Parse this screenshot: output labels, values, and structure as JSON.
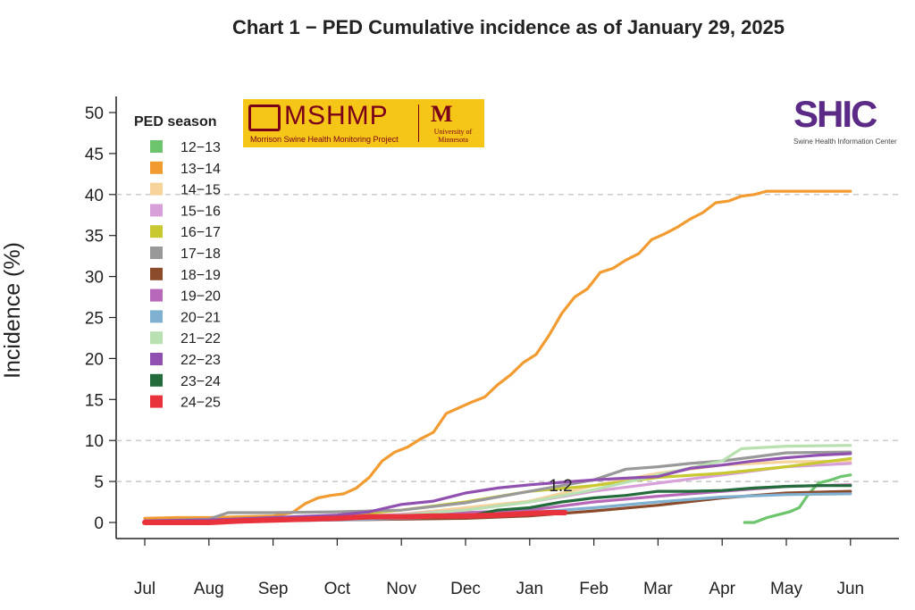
{
  "chart_data": {
    "type": "line",
    "title": "Chart 1 − PED Cumulative incidence as of January 29, 2025",
    "xlabel": "",
    "ylabel": "Incidence (%)",
    "ylim": [
      0,
      52
    ],
    "yticks": [
      0,
      5,
      10,
      15,
      20,
      25,
      30,
      35,
      40,
      45,
      50
    ],
    "gridlines_y": [
      5,
      10,
      40
    ],
    "x_categories": [
      "Jul",
      "Aug",
      "Sep",
      "Oct",
      "Nov",
      "Dec",
      "Jan",
      "Feb",
      "Mar",
      "Apr",
      "May",
      "Jun"
    ],
    "legend_title": "PED season",
    "legend_position": "top-left",
    "annotation": "1.2",
    "series": [
      {
        "name": "12−13",
        "color": "#6cc46c",
        "x": [
          9.35,
          9.5,
          9.7,
          9.9,
          10.05,
          10.2,
          10.35,
          10.5,
          10.7,
          10.85,
          11.0
        ],
        "y": [
          0,
          0,
          0.6,
          1.0,
          1.3,
          1.8,
          3.5,
          4.8,
          5.2,
          5.6,
          5.8
        ]
      },
      {
        "name": "13−14",
        "color": "#f29b30",
        "x": [
          0,
          0.5,
          1,
          1.5,
          2,
          2.3,
          2.5,
          2.7,
          2.9,
          3.1,
          3.3,
          3.5,
          3.7,
          3.9,
          4.1,
          4.3,
          4.5,
          4.7,
          4.9,
          5.1,
          5.3,
          5.5,
          5.7,
          5.9,
          6.1,
          6.3,
          6.5,
          6.7,
          6.9,
          7.1,
          7.3,
          7.5,
          7.7,
          7.9,
          8.1,
          8.3,
          8.5,
          8.7,
          8.9,
          9.1,
          9.3,
          9.5,
          9.7,
          9.9,
          10.1,
          10.3,
          10.5,
          10.7,
          11.0
        ],
        "y": [
          0.5,
          0.6,
          0.6,
          0.7,
          0.8,
          1.2,
          2.3,
          3.0,
          3.3,
          3.5,
          4.2,
          5.5,
          7.5,
          8.6,
          9.2,
          10.2,
          11.0,
          13.3,
          14.0,
          14.7,
          15.3,
          16.8,
          18.0,
          19.5,
          20.5,
          22.8,
          25.5,
          27.5,
          28.5,
          30.5,
          31.0,
          32.0,
          32.8,
          34.5,
          35.2,
          36.0,
          37.0,
          37.8,
          39.0,
          39.2,
          39.8,
          40.0,
          40.4,
          40.4,
          40.4,
          40.4,
          40.4,
          40.4,
          40.4
        ]
      },
      {
        "name": "14−15",
        "color": "#f5d39a",
        "x": [
          0,
          1,
          2,
          3,
          4,
          5,
          6,
          7,
          8,
          9,
          10,
          11
        ],
        "y": [
          0.1,
          0.2,
          0.4,
          0.7,
          1.0,
          1.8,
          2.6,
          4.5,
          6.0,
          7.0,
          7.4,
          7.5
        ]
      },
      {
        "name": "15−16",
        "color": "#d8a0d8",
        "x": [
          0,
          1,
          2,
          3,
          4,
          5,
          6,
          7,
          8,
          9,
          10,
          11
        ],
        "y": [
          0.1,
          0.2,
          0.3,
          0.6,
          1.0,
          1.5,
          2.5,
          3.8,
          4.8,
          5.8,
          6.8,
          7.2
        ]
      },
      {
        "name": "16−17",
        "color": "#c8c830",
        "x": [
          0,
          1,
          2,
          3,
          4,
          5,
          6,
          7,
          8,
          9,
          10,
          11
        ],
        "y": [
          0.1,
          0.2,
          0.4,
          0.8,
          1.5,
          2.5,
          3.8,
          4.5,
          5.5,
          6.0,
          6.8,
          7.8
        ]
      },
      {
        "name": "17−18",
        "color": "#999999",
        "x": [
          0,
          1,
          1.3,
          2,
          3,
          4,
          5,
          6,
          7,
          7.5,
          8,
          8.5,
          9,
          9.5,
          10,
          11
        ],
        "y": [
          0.2,
          0.4,
          1.2,
          1.2,
          1.3,
          1.5,
          2.4,
          3.8,
          5.2,
          6.5,
          6.8,
          7.2,
          7.5,
          8.0,
          8.5,
          8.6
        ]
      },
      {
        "name": "18−19",
        "color": "#8b4a2a",
        "x": [
          0,
          1,
          2,
          3,
          4,
          5,
          6,
          7,
          8,
          9,
          10,
          11
        ],
        "y": [
          0.1,
          0.1,
          0.2,
          0.3,
          0.4,
          0.5,
          0.8,
          1.4,
          2.1,
          3.0,
          3.6,
          3.8
        ]
      },
      {
        "name": "19−20",
        "color": "#b868b8",
        "x": [
          0,
          1,
          2,
          3,
          4,
          5,
          6,
          7,
          8,
          9,
          10,
          11
        ],
        "y": [
          0.1,
          0.1,
          0.3,
          0.5,
          0.8,
          1.2,
          1.5,
          2.5,
          3.2,
          3.8,
          4.4,
          4.6
        ]
      },
      {
        "name": "20−21",
        "color": "#7fb0d0",
        "x": [
          0,
          1,
          2,
          3,
          4,
          5,
          6,
          7,
          8,
          9,
          10,
          11
        ],
        "y": [
          0.1,
          0.1,
          0.2,
          0.3,
          0.5,
          0.8,
          1.2,
          1.8,
          2.5,
          3.1,
          3.4,
          3.5
        ]
      },
      {
        "name": "21−22",
        "color": "#b8e0b0",
        "x": [
          0,
          1,
          2,
          3,
          4,
          5,
          6,
          7,
          8,
          9,
          9.3,
          10,
          11
        ],
        "y": [
          0.1,
          0.2,
          0.3,
          0.5,
          0.9,
          1.5,
          2.5,
          4.0,
          5.8,
          7.5,
          9.0,
          9.3,
          9.4
        ]
      },
      {
        "name": "22−23",
        "color": "#9050b0",
        "x": [
          0,
          1,
          2,
          3,
          3.5,
          4,
          4.5,
          5,
          5.5,
          6,
          6.5,
          7,
          7.5,
          8,
          8.5,
          9,
          9.5,
          10,
          10.5,
          11
        ],
        "y": [
          0.2,
          0.3,
          0.6,
          0.9,
          1.3,
          2.2,
          2.6,
          3.6,
          4.2,
          4.6,
          4.9,
          5.2,
          5.4,
          5.6,
          6.6,
          7.0,
          7.5,
          7.9,
          8.2,
          8.4
        ]
      },
      {
        "name": "23−24",
        "color": "#236b3a",
        "x": [
          0,
          1,
          2,
          3,
          4,
          5,
          5.5,
          6,
          6.5,
          7,
          7.5,
          8,
          8.5,
          9,
          9.5,
          10,
          10.5,
          11
        ],
        "y": [
          0.1,
          0.1,
          0.3,
          0.5,
          0.6,
          0.7,
          1.5,
          1.8,
          2.5,
          3.0,
          3.3,
          3.8,
          3.8,
          3.9,
          4.2,
          4.4,
          4.5,
          4.5
        ]
      },
      {
        "name": "24−25",
        "color": "#e8323c",
        "x": [
          0,
          0.5,
          1,
          1.5,
          2,
          2.5,
          3,
          3.5,
          4,
          4.5,
          5,
          5.5,
          6,
          6.3,
          6.55
        ],
        "y": [
          0,
          0,
          0,
          0.2,
          0.3,
          0.4,
          0.5,
          0.7,
          0.7,
          0.8,
          0.8,
          0.9,
          1.1,
          1.2,
          1.2
        ]
      }
    ]
  },
  "logos": {
    "mshmp_text": "MSHMP",
    "mshmp_sub": "Morrison Swine Health Monitoring Project",
    "umn_text": "University of Minnesota",
    "shic_text": "SHIC",
    "shic_sub": "Swine Health Information Center"
  }
}
